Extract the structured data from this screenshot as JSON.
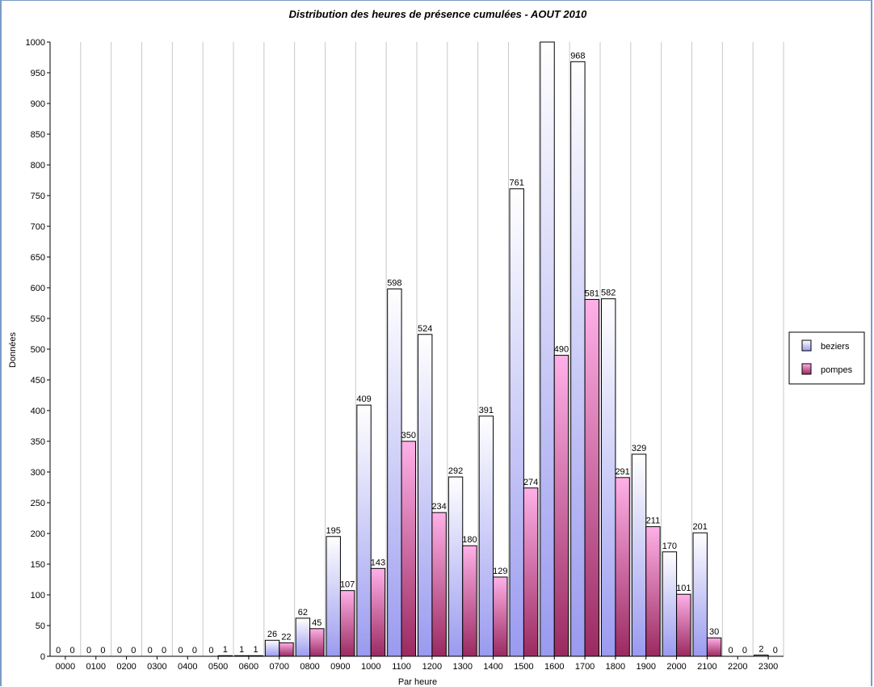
{
  "chart_data": {
    "type": "bar",
    "title": "Distribution des heures de présence cumulées - AOUT 2010",
    "xlabel": "Par heure",
    "ylabel": "Données",
    "ylim": [
      0,
      1000
    ],
    "ytick_step": 50,
    "grid": "vertical",
    "legend_position": "right",
    "categories": [
      "0000",
      "0100",
      "0200",
      "0300",
      "0400",
      "0500",
      "0600",
      "0700",
      "0800",
      "0900",
      "1000",
      "1100",
      "1200",
      "1300",
      "1400",
      "1500",
      "1600",
      "1700",
      "1800",
      "1900",
      "2000",
      "2100",
      "2200",
      "2300"
    ],
    "series": [
      {
        "name": "beziers",
        "color_top": "#ffffff",
        "color_bottom": "#9a9af0",
        "values": [
          0,
          0,
          0,
          0,
          0,
          0,
          1,
          26,
          62,
          195,
          409,
          598,
          524,
          292,
          391,
          761,
          1000,
          968,
          582,
          329,
          170,
          201,
          0,
          2
        ],
        "labels": [
          "0",
          "0",
          "0",
          "0",
          "0",
          "0",
          "1",
          "26",
          "62",
          "195",
          "409",
          "598",
          "524",
          "292",
          "391",
          "761",
          "",
          "968",
          "582",
          "329",
          "170",
          "201",
          "0",
          "2"
        ]
      },
      {
        "name": "pompes",
        "color_top": "#ffb0e8",
        "color_bottom": "#9a2a60",
        "values": [
          0,
          0,
          0,
          0,
          0,
          1,
          1,
          22,
          45,
          107,
          143,
          350,
          234,
          180,
          129,
          274,
          490,
          581,
          291,
          211,
          101,
          30,
          0,
          0
        ],
        "labels": [
          "0",
          "0",
          "0",
          "0",
          "0",
          "1",
          "1",
          "22",
          "45",
          "107",
          "143",
          "350",
          "234",
          "180",
          "129",
          "274",
          "490",
          "581",
          "291",
          "211",
          "101",
          "30",
          "0",
          "0"
        ]
      }
    ]
  }
}
